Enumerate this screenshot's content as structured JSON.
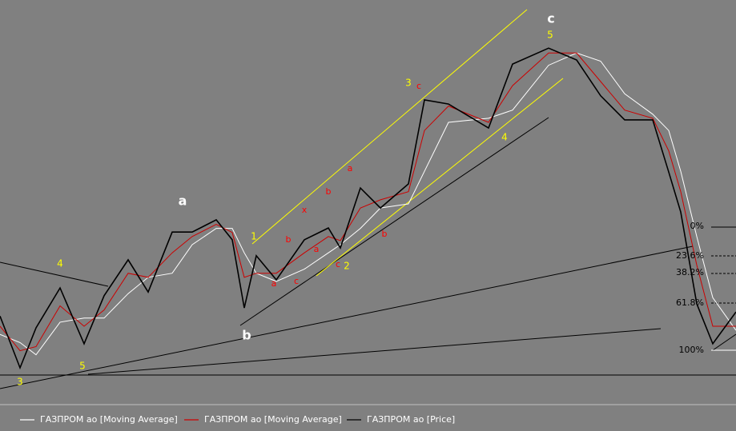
{
  "chart_data": {
    "type": "line",
    "xlim": [
      0,
      919
    ],
    "ylim": [
      0,
      100
    ],
    "x": [
      0,
      25,
      45,
      75,
      105,
      130,
      160,
      185,
      215,
      240,
      270,
      290,
      305,
      320,
      345,
      380,
      410,
      425,
      450,
      475,
      510,
      530,
      560,
      610,
      640,
      685,
      720,
      750,
      780,
      815,
      835,
      850,
      870,
      890,
      919
    ],
    "series": [
      {
        "name": "ГАЗПРОМ ао [Moving Average]",
        "color": "#ffffff",
        "values": [
          18,
          16,
          13,
          21,
          22,
          22,
          28,
          32,
          33,
          40,
          44,
          44,
          38,
          33,
          31,
          34,
          38,
          40,
          44,
          49,
          50,
          58,
          70,
          71,
          73,
          84,
          87,
          85,
          77,
          72,
          68,
          58,
          42,
          27,
          19
        ]
      },
      {
        "name": "ГАЗПРОМ ао [Moving Average]",
        "color": "#cc0000",
        "values": [
          20,
          14,
          15,
          25,
          20,
          24,
          33,
          32,
          38,
          42,
          45,
          43,
          32,
          33,
          33,
          38,
          42,
          41,
          49,
          51,
          53,
          68,
          74,
          70,
          79,
          87,
          87,
          80,
          73,
          71,
          63,
          53,
          35,
          20,
          20
        ]
      },
      {
        "name": "ГАЗПРОМ ао [Price]",
        "color": "#000000",
        "values": [
          22.5,
          9.8,
          19.6,
          29.4,
          15.7,
          27.5,
          36.3,
          28.4,
          43.1,
          43.1,
          46.1,
          41.2,
          24.5,
          37.3,
          31.4,
          41.2,
          44.1,
          39.2,
          53.9,
          49.0,
          54.9,
          75.5,
          74.5,
          68.6,
          84.3,
          88.2,
          85.3,
          76.5,
          70.6,
          70.6,
          57.8,
          48.0,
          25.5,
          15.7,
          23.5
        ]
      }
    ],
    "annotations": [
      {
        "text": "a",
        "color": "#ffffff"
      },
      {
        "text": "b",
        "color": "#ffffff"
      },
      {
        "text": "c",
        "color": "#ffffff"
      },
      {
        "text": "3",
        "color": "#ffff00"
      },
      {
        "text": "5",
        "color": "#ffff00"
      },
      {
        "text": "4",
        "color": "#ffff00"
      },
      {
        "text": "1",
        "color": "#ffff00"
      },
      {
        "text": "2",
        "color": "#ffff00"
      },
      {
        "text": "3",
        "color": "#ffff00"
      },
      {
        "text": "5",
        "color": "#ffff00"
      },
      {
        "text": "4",
        "color": "#ffff00"
      },
      {
        "text": "a",
        "color": "#ff0000"
      },
      {
        "text": "c",
        "color": "#ff0000"
      },
      {
        "text": "a",
        "color": "#ff0000"
      },
      {
        "text": "b",
        "color": "#ff0000"
      },
      {
        "text": "x",
        "color": "#ff0000"
      },
      {
        "text": "b",
        "color": "#ff0000"
      },
      {
        "text": "a",
        "color": "#ff0000"
      },
      {
        "text": "c",
        "color": "#ff0000"
      },
      {
        "text": "b",
        "color": "#ff0000"
      },
      {
        "text": "c",
        "color": "#ff0000"
      }
    ],
    "fib_levels": [
      "0%",
      "23.6%",
      "38.2%",
      "61.8%",
      "100%"
    ]
  }
}
